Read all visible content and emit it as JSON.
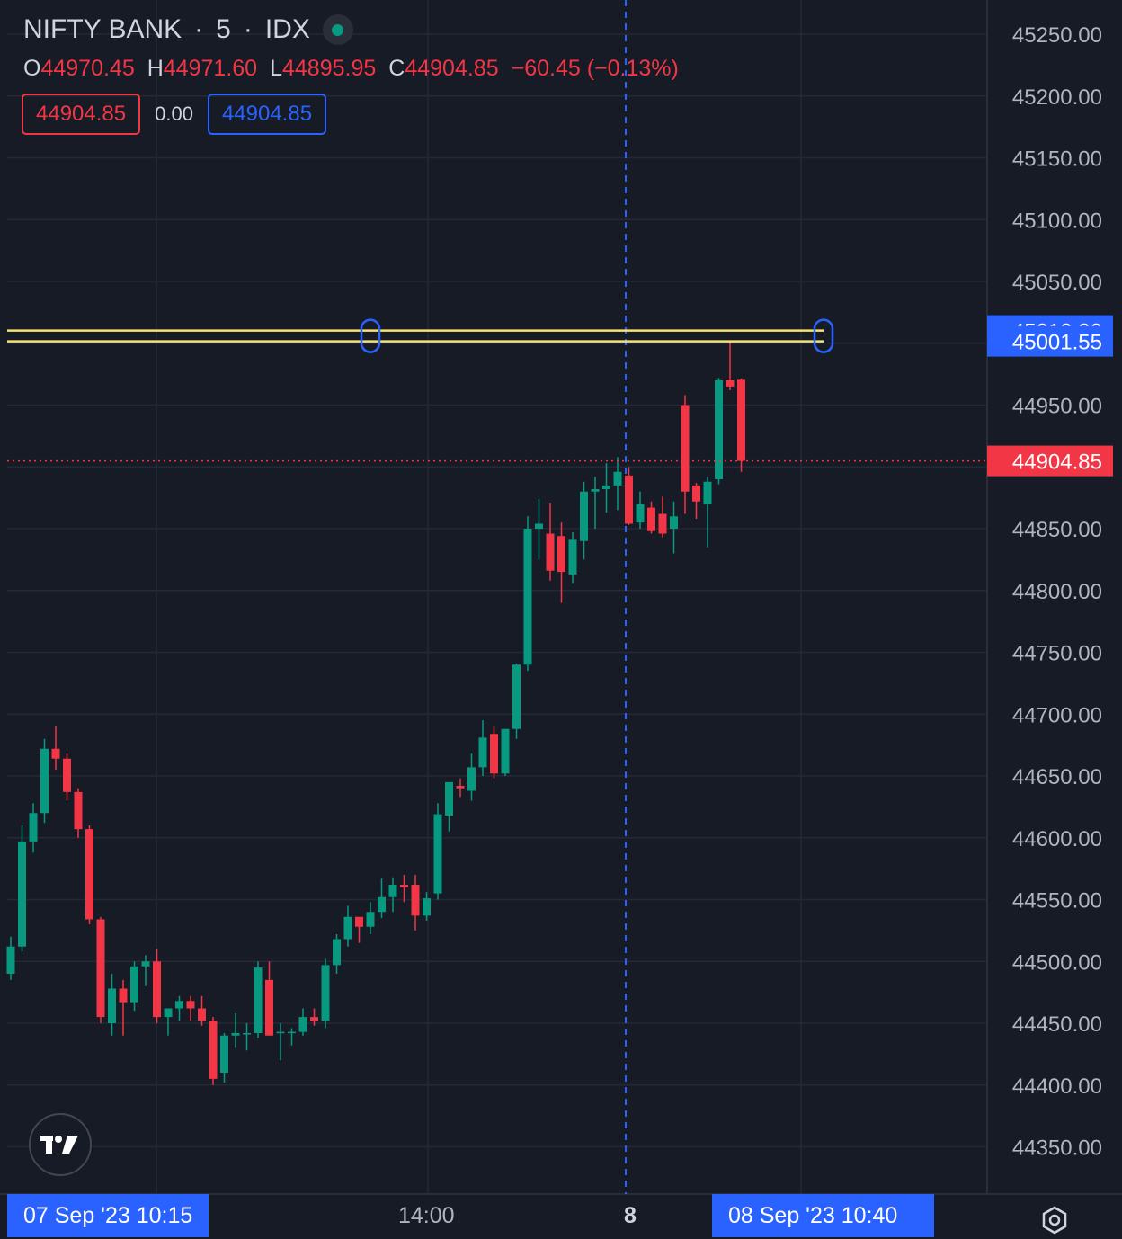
{
  "header": {
    "symbol": "NIFTY BANK",
    "sep1": "·",
    "interval": "5",
    "sep2": "·",
    "exchange": "IDX",
    "status_color": "#089981"
  },
  "ohlc": {
    "o_label": "O",
    "o_value": "44970.45",
    "h_label": "H",
    "h_value": "44971.60",
    "l_label": "L",
    "l_value": "44895.95",
    "c_label": "C",
    "c_value": "44904.85",
    "change": "−60.45 (−0.13%)"
  },
  "trade_boxes": {
    "sell_price": "44904.85",
    "spread": "0.00",
    "buy_price": "44904.85"
  },
  "colors": {
    "background": "#171b26",
    "up": "#089981",
    "down": "#f23645",
    "accent": "#2962ff",
    "level_line": "#f7e36f"
  },
  "chart_data": {
    "type": "candlestick",
    "ylim": [
      44310,
      45275
    ],
    "y_ticks": [
      "45250.00",
      "45200.00",
      "45150.00",
      "45100.00",
      "45050.00",
      "44950.00",
      "44850.00",
      "44800.00",
      "44750.00",
      "44700.00",
      "44650.00",
      "44600.00",
      "44550.00",
      "44500.00",
      "44450.00",
      "44400.00",
      "44350.00"
    ],
    "x_ticks": [
      "14:00",
      "8"
    ],
    "crosshair_x_label": "07 Sep '23    10:15",
    "range_end_label": "08 Sep '23    10:40",
    "horizontal_levels": [
      {
        "value": 45010.3,
        "label": "45010.30"
      },
      {
        "value": 45001.55,
        "label": "45001.55"
      }
    ],
    "last_price": {
      "value": 44904.85,
      "label": "44904.85"
    },
    "candles": [
      {
        "o": 44490,
        "h": 44520,
        "l": 44485,
        "c": 44512
      },
      {
        "o": 44512,
        "h": 44610,
        "l": 44508,
        "c": 44597
      },
      {
        "o": 44597,
        "h": 44628,
        "l": 44588,
        "c": 44620
      },
      {
        "o": 44620,
        "h": 44680,
        "l": 44612,
        "c": 44672
      },
      {
        "o": 44672,
        "h": 44690,
        "l": 44655,
        "c": 44664
      },
      {
        "o": 44664,
        "h": 44668,
        "l": 44630,
        "c": 44637
      },
      {
        "o": 44637,
        "h": 44640,
        "l": 44600,
        "c": 44607
      },
      {
        "o": 44607,
        "h": 44610,
        "l": 44530,
        "c": 44534
      },
      {
        "o": 44534,
        "h": 44536,
        "l": 44450,
        "c": 44455
      },
      {
        "o": 44450,
        "h": 44490,
        "l": 44440,
        "c": 44478
      },
      {
        "o": 44478,
        "h": 44485,
        "l": 44440,
        "c": 44467
      },
      {
        "o": 44467,
        "h": 44500,
        "l": 44460,
        "c": 44496
      },
      {
        "o": 44496,
        "h": 44505,
        "l": 44480,
        "c": 44500
      },
      {
        "o": 44500,
        "h": 44510,
        "l": 44450,
        "c": 44455
      },
      {
        "o": 44455,
        "h": 44462,
        "l": 44440,
        "c": 44462
      },
      {
        "o": 44462,
        "h": 44472,
        "l": 44452,
        "c": 44468
      },
      {
        "o": 44468,
        "h": 44472,
        "l": 44452,
        "c": 44462
      },
      {
        "o": 44462,
        "h": 44472,
        "l": 44448,
        "c": 44452
      },
      {
        "o": 44452,
        "h": 44455,
        "l": 44400,
        "c": 44405
      },
      {
        "o": 44410,
        "h": 44442,
        "l": 44402,
        "c": 44440
      },
      {
        "o": 44440,
        "h": 44458,
        "l": 44430,
        "c": 44442
      },
      {
        "o": 44442,
        "h": 44450,
        "l": 44428,
        "c": 44442
      },
      {
        "o": 44442,
        "h": 44500,
        "l": 44438,
        "c": 44495
      },
      {
        "o": 44485,
        "h": 44500,
        "l": 44440,
        "c": 44440
      },
      {
        "o": 44442,
        "h": 44450,
        "l": 44420,
        "c": 44443
      },
      {
        "o": 44443,
        "h": 44446,
        "l": 44432,
        "c": 44443
      },
      {
        "o": 44443,
        "h": 44462,
        "l": 44440,
        "c": 44455
      },
      {
        "o": 44455,
        "h": 44462,
        "l": 44448,
        "c": 44452
      },
      {
        "o": 44452,
        "h": 44502,
        "l": 44446,
        "c": 44497
      },
      {
        "o": 44497,
        "h": 44522,
        "l": 44490,
        "c": 44518
      },
      {
        "o": 44518,
        "h": 44545,
        "l": 44512,
        "c": 44536
      },
      {
        "o": 44536,
        "h": 44535,
        "l": 44515,
        "c": 44528
      },
      {
        "o": 44528,
        "h": 44548,
        "l": 44522,
        "c": 44540
      },
      {
        "o": 44540,
        "h": 44567,
        "l": 44535,
        "c": 44552
      },
      {
        "o": 44552,
        "h": 44568,
        "l": 44540,
        "c": 44562
      },
      {
        "o": 44562,
        "h": 44570,
        "l": 44548,
        "c": 44560
      },
      {
        "o": 44562,
        "h": 44570,
        "l": 44525,
        "c": 44537
      },
      {
        "o": 44537,
        "h": 44556,
        "l": 44533,
        "c": 44551
      },
      {
        "o": 44555,
        "h": 44628,
        "l": 44550,
        "c": 44619
      },
      {
        "o": 44618,
        "h": 44645,
        "l": 44605,
        "c": 44645
      },
      {
        "o": 44642,
        "h": 44648,
        "l": 44633,
        "c": 44640
      },
      {
        "o": 44638,
        "h": 44668,
        "l": 44630,
        "c": 44657
      },
      {
        "o": 44657,
        "h": 44695,
        "l": 44650,
        "c": 44681
      },
      {
        "o": 44684,
        "h": 44690,
        "l": 44648,
        "c": 44652
      },
      {
        "o": 44652,
        "h": 44688,
        "l": 44650,
        "c": 44688
      },
      {
        "o": 44688,
        "h": 44741,
        "l": 44680,
        "c": 44740
      },
      {
        "o": 44740,
        "h": 44860,
        "l": 44735,
        "c": 44850
      },
      {
        "o": 44850,
        "h": 44874,
        "l": 44825,
        "c": 44854
      },
      {
        "o": 44846,
        "h": 44871,
        "l": 44808,
        "c": 44816
      },
      {
        "o": 44844,
        "h": 44855,
        "l": 44790,
        "c": 44815
      },
      {
        "o": 44813,
        "h": 44847,
        "l": 44806,
        "c": 44841
      },
      {
        "o": 44840,
        "h": 44888,
        "l": 44825,
        "c": 44880
      },
      {
        "o": 44880,
        "h": 44892,
        "l": 44850,
        "c": 44882
      },
      {
        "o": 44882,
        "h": 44903,
        "l": 44863,
        "c": 44885
      },
      {
        "o": 44885,
        "h": 44908,
        "l": 44865,
        "c": 44896
      },
      {
        "o": 44893,
        "h": 44900,
        "l": 44853,
        "c": 44854
      },
      {
        "o": 44855,
        "h": 44880,
        "l": 44850,
        "c": 44870
      },
      {
        "o": 44867,
        "h": 44872,
        "l": 44846,
        "c": 44848
      },
      {
        "o": 44862,
        "h": 44876,
        "l": 44843,
        "c": 44846
      },
      {
        "o": 44850,
        "h": 44872,
        "l": 44830,
        "c": 44860
      },
      {
        "o": 44950,
        "h": 44958,
        "l": 44862,
        "c": 44880
      },
      {
        "o": 44885,
        "h": 44887,
        "l": 44858,
        "c": 44872
      },
      {
        "o": 44870,
        "h": 44892,
        "l": 44835,
        "c": 44888
      },
      {
        "o": 44890,
        "h": 44972,
        "l": 44886,
        "c": 44970
      },
      {
        "o": 44970,
        "h": 45001,
        "l": 44962,
        "c": 44965
      },
      {
        "o": 44970.45,
        "h": 44971.6,
        "l": 44895.95,
        "c": 44904.85
      }
    ]
  }
}
